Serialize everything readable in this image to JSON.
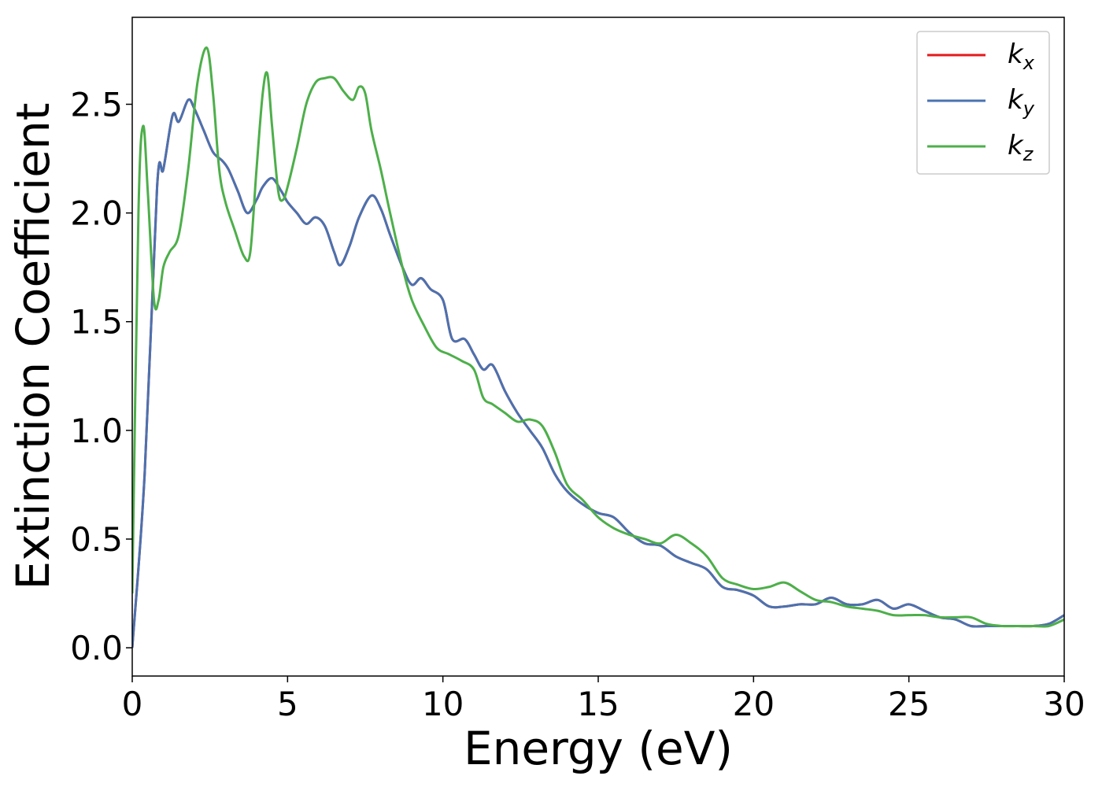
{
  "chart_data": {
    "type": "line",
    "title": "",
    "xlabel": "Energy (eV)",
    "ylabel": "Extinction Coefficient",
    "xlim": [
      0,
      30
    ],
    "ylim": [
      -0.13,
      2.9
    ],
    "xticks": [
      0,
      5,
      10,
      15,
      20,
      25,
      30
    ],
    "xtick_labels": [
      "0",
      "5",
      "10",
      "15",
      "20",
      "25",
      "30"
    ],
    "yticks": [
      0.0,
      0.5,
      1.0,
      1.5,
      2.0,
      2.5
    ],
    "ytick_labels": [
      "0.0",
      "0.5",
      "1.0",
      "1.5",
      "2.0",
      "2.5"
    ],
    "grid": false,
    "legend_position": "top-right",
    "series": [
      {
        "name": "k",
        "subscript": "x",
        "color": "#e41a1c",
        "x": [
          0,
          0.4,
          0.8,
          1.0,
          1.3,
          1.5,
          1.8,
          2.0,
          2.3,
          2.6,
          2.9,
          3.1,
          3.4,
          3.7,
          4.0,
          4.2,
          4.5,
          4.8,
          5.0,
          5.3,
          5.6,
          5.9,
          6.2,
          6.5,
          6.7,
          7.0,
          7.3,
          7.7,
          8.0,
          8.3,
          8.7,
          9.0,
          9.3,
          9.6,
          10.0,
          10.3,
          10.7,
          11.0,
          11.3,
          11.6,
          12.0,
          12.4,
          12.8,
          13.2,
          13.6,
          14.0,
          14.5,
          15.0,
          15.5,
          16.0,
          16.5,
          17.0,
          17.5,
          18.0,
          18.5,
          19.0,
          19.5,
          20.0,
          20.5,
          21.0,
          21.5,
          22.0,
          22.5,
          23.0,
          23.5,
          24.0,
          24.5,
          25.0,
          25.5,
          26.0,
          26.5,
          27.0,
          27.5,
          28.0,
          28.5,
          29.0,
          29.5,
          30.0
        ],
        "y": [
          0.0,
          0.8,
          2.12,
          2.2,
          2.45,
          2.42,
          2.52,
          2.48,
          2.38,
          2.28,
          2.24,
          2.2,
          2.1,
          2.0,
          2.06,
          2.12,
          2.16,
          2.1,
          2.05,
          2.0,
          1.95,
          1.98,
          1.94,
          1.82,
          1.76,
          1.85,
          1.98,
          2.08,
          2.02,
          1.9,
          1.75,
          1.67,
          1.7,
          1.65,
          1.6,
          1.42,
          1.42,
          1.35,
          1.28,
          1.3,
          1.18,
          1.08,
          1.0,
          0.92,
          0.8,
          0.72,
          0.66,
          0.62,
          0.6,
          0.53,
          0.48,
          0.47,
          0.42,
          0.39,
          0.36,
          0.28,
          0.265,
          0.24,
          0.19,
          0.19,
          0.2,
          0.2,
          0.23,
          0.2,
          0.2,
          0.22,
          0.18,
          0.2,
          0.17,
          0.14,
          0.13,
          0.1,
          0.1,
          0.1,
          0.1,
          0.1,
          0.11,
          0.15
        ]
      },
      {
        "name": "k",
        "subscript": "y",
        "color": "#4a72b0",
        "x": [
          0,
          0.4,
          0.8,
          1.0,
          1.3,
          1.5,
          1.8,
          2.0,
          2.3,
          2.6,
          2.9,
          3.1,
          3.4,
          3.7,
          4.0,
          4.2,
          4.5,
          4.8,
          5.0,
          5.3,
          5.6,
          5.9,
          6.2,
          6.5,
          6.7,
          7.0,
          7.3,
          7.7,
          8.0,
          8.3,
          8.7,
          9.0,
          9.3,
          9.6,
          10.0,
          10.3,
          10.7,
          11.0,
          11.3,
          11.6,
          12.0,
          12.4,
          12.8,
          13.2,
          13.6,
          14.0,
          14.5,
          15.0,
          15.5,
          16.0,
          16.5,
          17.0,
          17.5,
          18.0,
          18.5,
          19.0,
          19.5,
          20.0,
          20.5,
          21.0,
          21.5,
          22.0,
          22.5,
          23.0,
          23.5,
          24.0,
          24.5,
          25.0,
          25.5,
          26.0,
          26.5,
          27.0,
          27.5,
          28.0,
          28.5,
          29.0,
          29.5,
          30.0
        ],
        "y": [
          0.0,
          0.8,
          2.12,
          2.2,
          2.45,
          2.42,
          2.52,
          2.48,
          2.38,
          2.28,
          2.24,
          2.2,
          2.1,
          2.0,
          2.06,
          2.12,
          2.16,
          2.1,
          2.05,
          2.0,
          1.95,
          1.98,
          1.94,
          1.82,
          1.76,
          1.85,
          1.98,
          2.08,
          2.02,
          1.9,
          1.75,
          1.67,
          1.7,
          1.65,
          1.6,
          1.42,
          1.42,
          1.35,
          1.28,
          1.3,
          1.18,
          1.08,
          1.0,
          0.92,
          0.8,
          0.72,
          0.66,
          0.62,
          0.6,
          0.53,
          0.48,
          0.47,
          0.42,
          0.39,
          0.36,
          0.28,
          0.265,
          0.24,
          0.19,
          0.19,
          0.2,
          0.2,
          0.23,
          0.2,
          0.2,
          0.22,
          0.18,
          0.2,
          0.17,
          0.14,
          0.13,
          0.1,
          0.1,
          0.1,
          0.1,
          0.1,
          0.11,
          0.15
        ]
      },
      {
        "name": "k",
        "subscript": "z",
        "color": "#4daf4a",
        "x": [
          0,
          0.2,
          0.35,
          0.5,
          0.7,
          0.85,
          1.0,
          1.2,
          1.5,
          1.8,
          2.1,
          2.4,
          2.6,
          2.8,
          3.0,
          3.3,
          3.6,
          3.8,
          4.0,
          4.2,
          4.35,
          4.5,
          4.7,
          4.85,
          5.0,
          5.3,
          5.6,
          5.9,
          6.2,
          6.5,
          6.8,
          7.1,
          7.3,
          7.5,
          7.7,
          8.0,
          8.3,
          8.7,
          9.0,
          9.4,
          9.8,
          10.2,
          10.6,
          11.0,
          11.3,
          11.6,
          12.0,
          12.4,
          12.8,
          13.2,
          13.6,
          14.0,
          14.5,
          15.0,
          15.5,
          16.0,
          16.5,
          17.0,
          17.5,
          18.0,
          18.5,
          19.0,
          19.5,
          20.0,
          20.5,
          21.0,
          21.5,
          22.0,
          22.5,
          23.0,
          23.5,
          24.0,
          24.5,
          25.0,
          25.5,
          26.0,
          26.5,
          27.0,
          27.5,
          28.0,
          28.5,
          29.0,
          29.5,
          30.0
        ],
        "y": [
          0.25,
          2.0,
          2.4,
          2.1,
          1.6,
          1.6,
          1.75,
          1.82,
          1.9,
          2.2,
          2.6,
          2.76,
          2.55,
          2.2,
          2.05,
          1.92,
          1.8,
          1.82,
          2.2,
          2.55,
          2.64,
          2.4,
          2.1,
          2.06,
          2.12,
          2.3,
          2.5,
          2.6,
          2.62,
          2.62,
          2.56,
          2.52,
          2.58,
          2.55,
          2.38,
          2.2,
          2.0,
          1.75,
          1.6,
          1.48,
          1.38,
          1.35,
          1.32,
          1.28,
          1.15,
          1.12,
          1.08,
          1.04,
          1.05,
          1.02,
          0.9,
          0.75,
          0.68,
          0.6,
          0.55,
          0.52,
          0.5,
          0.48,
          0.52,
          0.48,
          0.42,
          0.32,
          0.29,
          0.27,
          0.28,
          0.3,
          0.26,
          0.22,
          0.21,
          0.19,
          0.18,
          0.17,
          0.15,
          0.15,
          0.15,
          0.14,
          0.14,
          0.14,
          0.11,
          0.1,
          0.1,
          0.1,
          0.1,
          0.13
        ]
      }
    ]
  }
}
